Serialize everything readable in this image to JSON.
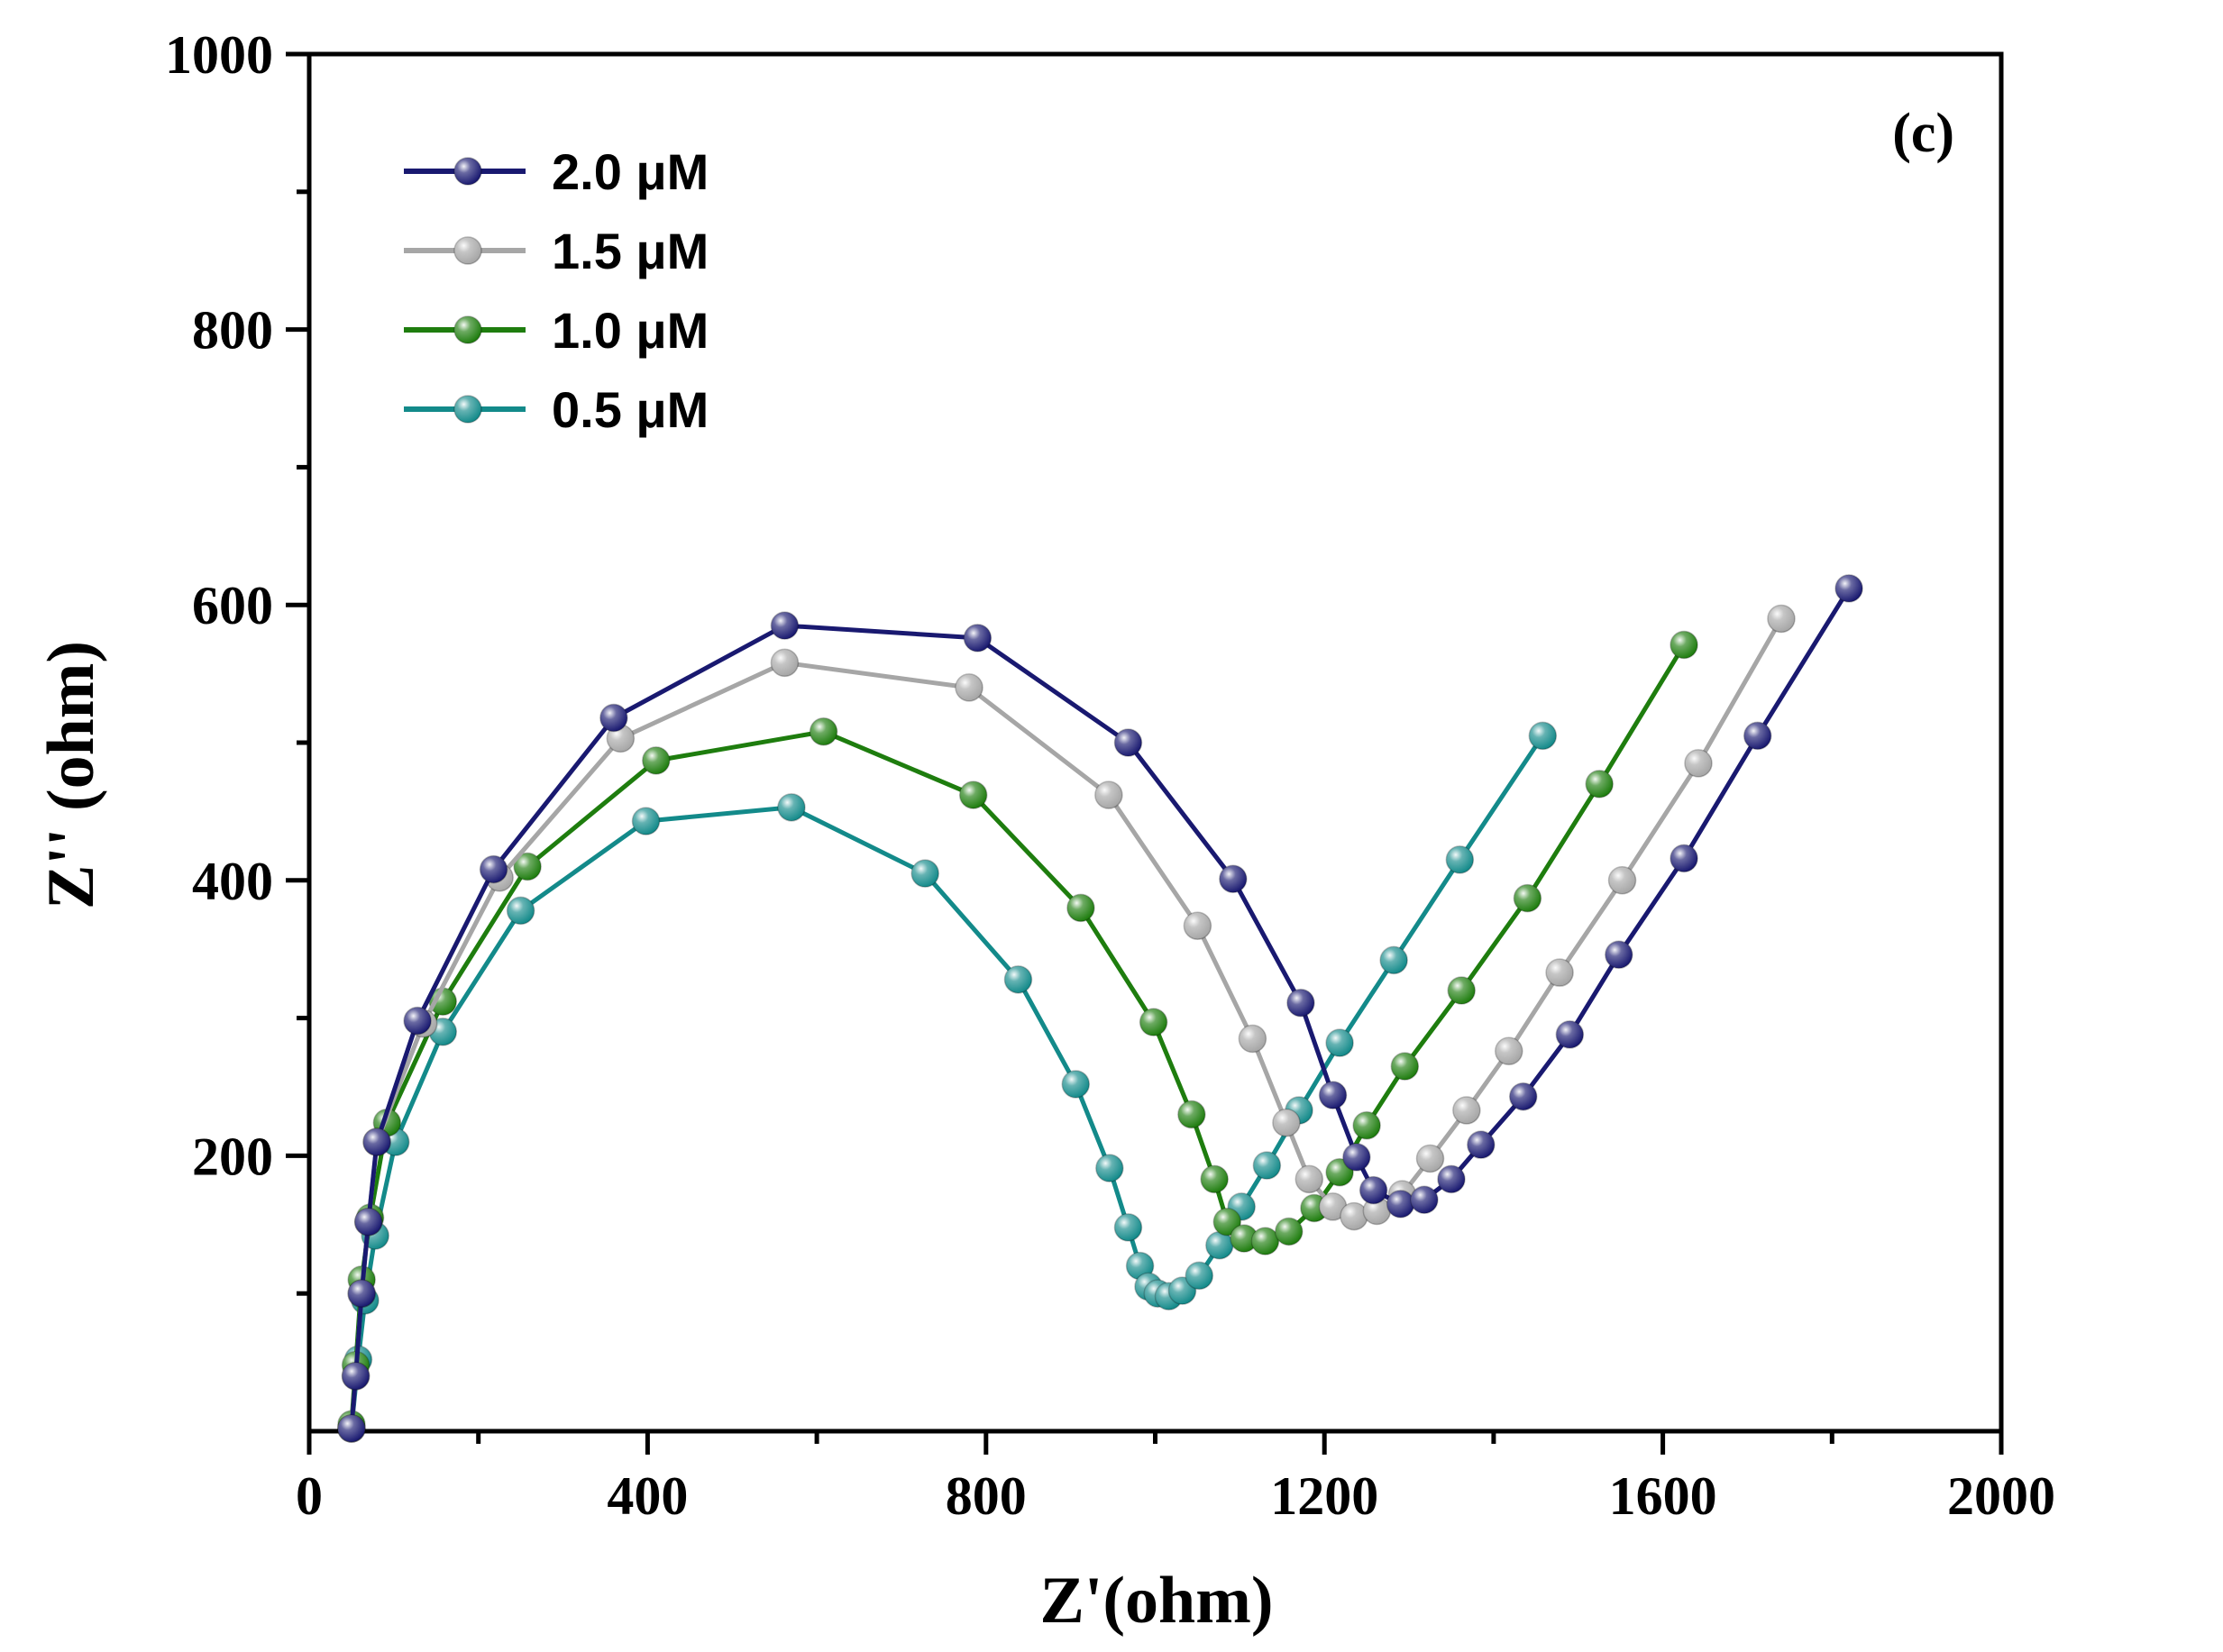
{
  "chart_data": {
    "type": "line",
    "panel_label": "(c)",
    "xlabel": "Z'(ohm)",
    "ylabel": "Z'' (ohm)",
    "xlim": [
      0,
      2000
    ],
    "ylim": [
      0,
      1000
    ],
    "xticks": [
      "0",
      "400",
      "800",
      "1200",
      "1600",
      "2000"
    ],
    "yticks": [
      "200",
      "400",
      "600",
      "800",
      "1000"
    ],
    "grid": false,
    "legend_position": "top-left",
    "series": [
      {
        "name": "2.0 μM",
        "color": "#191970",
        "x": [
          50,
          55,
          62,
          70,
          80,
          128,
          218,
          360,
          562,
          790,
          968,
          1092,
          1172,
          1210,
          1238,
          1258,
          1290,
          1318,
          1350,
          1385,
          1435,
          1490,
          1548,
          1625,
          1712,
          1820
        ],
        "y": [
          2,
          40,
          100,
          152,
          210,
          298,
          408,
          518,
          585,
          576,
          500,
          401,
          311,
          244,
          199,
          175,
          165,
          168,
          183,
          208,
          243,
          288,
          346,
          416,
          505,
          612
        ]
      },
      {
        "name": "1.5 μM",
        "color": "#A6A6A6",
        "x": [
          50,
          55,
          62,
          70,
          80,
          135,
          225,
          368,
          562,
          780,
          945,
          1050,
          1115,
          1155,
          1182,
          1210,
          1235,
          1262,
          1292,
          1325,
          1368,
          1418,
          1478,
          1552,
          1642,
          1740
        ],
        "y": [
          2,
          40,
          100,
          152,
          210,
          296,
          402,
          503,
          558,
          540,
          462,
          367,
          285,
          224,
          183,
          163,
          156,
          160,
          172,
          198,
          233,
          276,
          333,
          400,
          485,
          590
        ]
      },
      {
        "name": "1.0 μM",
        "color": "#1E7D0E",
        "x": [
          50,
          55,
          62,
          72,
          92,
          158,
          258,
          410,
          608,
          785,
          912,
          998,
          1043,
          1070,
          1085,
          1105,
          1130,
          1158,
          1188,
          1218,
          1250,
          1295,
          1362,
          1440,
          1525,
          1625
        ],
        "y": [
          5,
          48,
          110,
          155,
          224,
          312,
          410,
          487,
          508,
          462,
          380,
          297,
          230,
          183,
          152,
          140,
          138,
          145,
          162,
          188,
          222,
          265,
          320,
          387,
          470,
          571
        ]
      },
      {
        "name": "0.5 μM",
        "color": "#138A8A",
        "x": [
          50,
          58,
          66,
          78,
          102,
          158,
          250,
          398,
          570,
          728,
          838,
          906,
          946,
          968,
          982,
          992,
          1003,
          1016,
          1032,
          1052,
          1076,
          1102,
          1132,
          1170,
          1218,
          1282,
          1360,
          1458
        ],
        "y": [
          2,
          52,
          95,
          142,
          210,
          290,
          378,
          443,
          453,
          405,
          328,
          252,
          191,
          148,
          120,
          105,
          100,
          98,
          102,
          113,
          135,
          163,
          193,
          233,
          282,
          342,
          415,
          505
        ]
      }
    ]
  }
}
